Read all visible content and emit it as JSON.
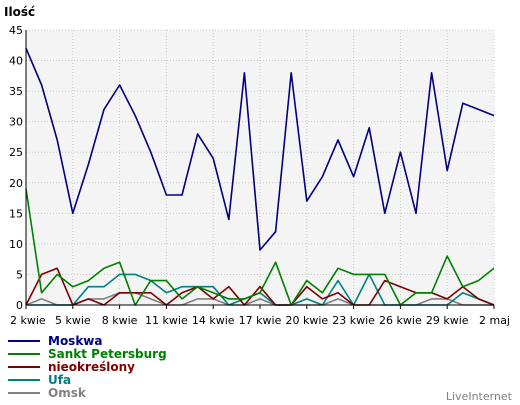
{
  "chart_data": {
    "type": "line",
    "ylabel": "Ilość",
    "ylim": [
      0,
      45
    ],
    "yticks": [
      0,
      5,
      10,
      15,
      20,
      25,
      30,
      35,
      40,
      45
    ],
    "x_tick_labels": [
      "2 kwie",
      "5 kwie",
      "8 kwie",
      "11 kwie",
      "14 kwie",
      "17 kwie",
      "20 kwie",
      "23 kwie",
      "26 kwie",
      "29 kwie",
      "2 maj"
    ],
    "grid": true,
    "legend_position": "bottom-left",
    "series": [
      {
        "name": "Moskwa",
        "color": "#000080",
        "values": [
          42,
          36,
          27,
          15,
          23,
          32,
          36,
          31,
          25,
          18,
          18,
          28,
          24,
          14,
          38,
          9,
          12,
          38,
          17,
          21,
          27,
          21,
          29,
          15,
          25,
          15,
          38,
          22,
          33,
          32,
          31
        ]
      },
      {
        "name": "Sankt Petersburg",
        "color": "#008000",
        "values": [
          19,
          2,
          5,
          3,
          4,
          6,
          7,
          0,
          4,
          4,
          1,
          3,
          2,
          1,
          1,
          2,
          7,
          0,
          4,
          2,
          6,
          5,
          5,
          5,
          0,
          2,
          2,
          8,
          3,
          4,
          6
        ]
      },
      {
        "name": "nieokreślony",
        "color": "#800000",
        "values": [
          0,
          5,
          6,
          0,
          1,
          0,
          2,
          2,
          2,
          0,
          2,
          3,
          1,
          3,
          0,
          3,
          0,
          0,
          3,
          1,
          2,
          0,
          0,
          4,
          3,
          2,
          2,
          1,
          3,
          1,
          0
        ]
      },
      {
        "name": "Ufa",
        "color": "#008080",
        "values": [
          0,
          0,
          0,
          0,
          3,
          3,
          5,
          5,
          4,
          2,
          3,
          3,
          3,
          0,
          1,
          2,
          0,
          0,
          1,
          0,
          4,
          0,
          5,
          0,
          0,
          0,
          0,
          0,
          2,
          1,
          0
        ]
      },
      {
        "name": "Omsk",
        "color": "#808080",
        "values": [
          0,
          1,
          0,
          0,
          1,
          1,
          2,
          2,
          1,
          0,
          0,
          1,
          1,
          0,
          0,
          1,
          0,
          0,
          0,
          0,
          1,
          0,
          0,
          0,
          0,
          0,
          1,
          1,
          0,
          0,
          0
        ]
      }
    ]
  },
  "brand": "LiveInternet"
}
